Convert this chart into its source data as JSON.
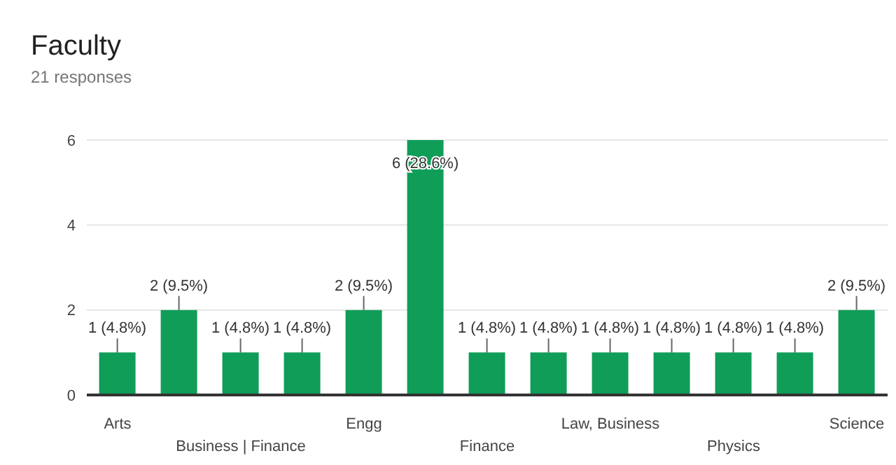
{
  "chart_data": {
    "type": "bar",
    "title": "Faculty",
    "subtitle": "21 responses",
    "categories": [
      "Arts",
      null,
      "Business | Finance",
      null,
      "Engg",
      null,
      "Finance",
      null,
      "Law, Business",
      null,
      "Physics",
      null,
      "Science"
    ],
    "values": [
      1,
      2,
      1,
      1,
      2,
      6,
      1,
      1,
      1,
      1,
      1,
      1,
      2
    ],
    "value_labels": [
      "1 (4.8%)",
      "2 (9.5%)",
      "1 (4.8%)",
      "1 (4.8%)",
      "2 (9.5%)",
      "6 (28.6%)",
      "1 (4.8%)",
      "1 (4.8%)",
      "1 (4.8%)",
      "1 (4.8%)",
      "1 (4.8%)",
      "1 (4.8%)",
      "2 (9.5%)"
    ],
    "color": "#0f9d58",
    "ylim": [
      0,
      6
    ],
    "yticks": [
      0,
      2,
      4,
      6
    ],
    "grid": "y"
  }
}
